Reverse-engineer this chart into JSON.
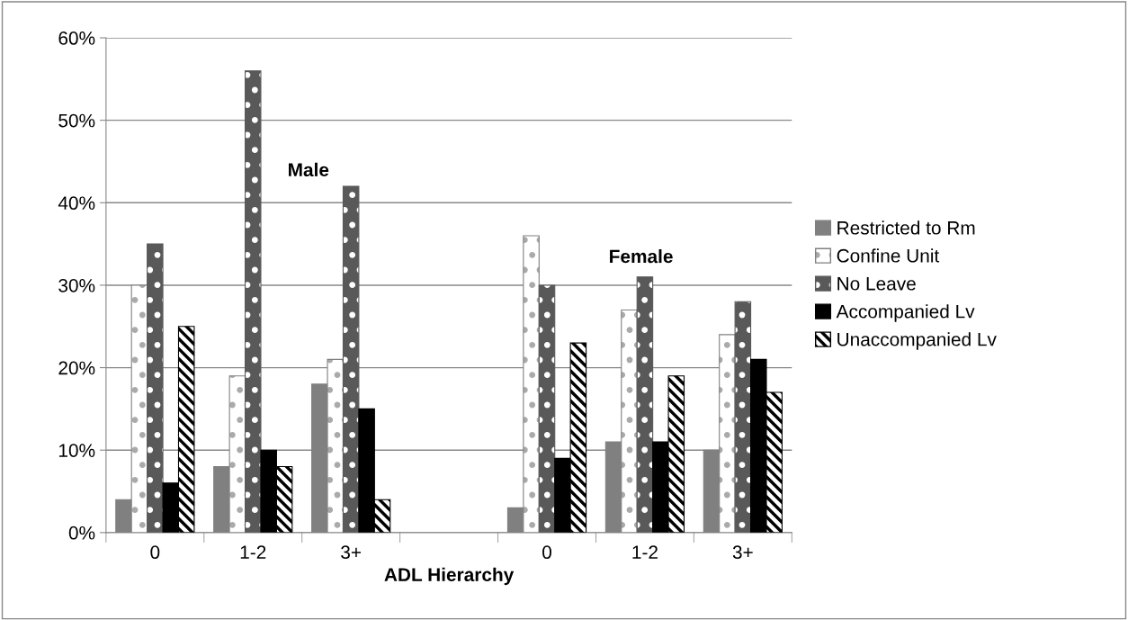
{
  "chart_data": {
    "type": "bar",
    "xlabel": "ADL Hierarchy",
    "categories": [
      "0",
      "1-2",
      "3+",
      null,
      "0",
      "1-2",
      "3+"
    ],
    "series": [
      {
        "name": "Restricted to Rm",
        "color": "#808080",
        "values": [
          4,
          8,
          18,
          null,
          3,
          11,
          10
        ]
      },
      {
        "name": "Confine Unit",
        "color": "#808080",
        "values": [
          30,
          19,
          21,
          null,
          36,
          27,
          24
        ]
      },
      {
        "name": "No Leave",
        "color": "#595959",
        "values": [
          35,
          56,
          42,
          null,
          30,
          31,
          28
        ]
      },
      {
        "name": "Accompanied Lv",
        "color": "#000000",
        "values": [
          6,
          10,
          15,
          null,
          9,
          11,
          21
        ]
      },
      {
        "name": "Unaccompanied Lv",
        "color": "#000000",
        "values": [
          25,
          8,
          4,
          null,
          23,
          19,
          17
        ]
      }
    ],
    "ylim": [
      0,
      60
    ],
    "yticks": [
      {
        "value": 0,
        "label": "0%"
      },
      {
        "value": 10,
        "label": "10%"
      },
      {
        "value": 20,
        "label": "20%"
      },
      {
        "value": 30,
        "label": "30%"
      },
      {
        "value": 40,
        "label": "40%"
      },
      {
        "value": 50,
        "label": "50%"
      },
      {
        "value": 60,
        "label": "60%"
      }
    ],
    "annotations": [
      "Male",
      "Female"
    ],
    "grid": "y",
    "legend": "right"
  }
}
